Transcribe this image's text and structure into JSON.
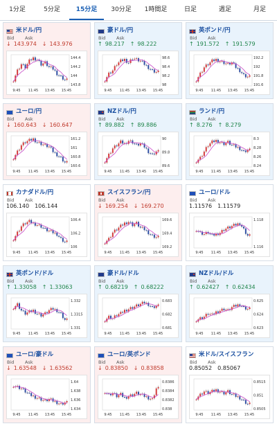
{
  "tabs": [
    {
      "label": "1分足",
      "active": false
    },
    {
      "label": "5分足",
      "active": false
    },
    {
      "label": "15分足",
      "active": true
    },
    {
      "label": "30分足",
      "active": false
    },
    {
      "label": "1時間足",
      "active": false
    },
    {
      "label": "日足",
      "active": false
    },
    {
      "label": "週足",
      "active": false
    },
    {
      "label": "月足",
      "active": false
    }
  ],
  "bid_label": "Bid",
  "ask_label": "Ask",
  "x_ticks": [
    "9:45",
    "11:45",
    "13:45",
    "15:45"
  ],
  "cards": [
    {
      "pair": "米ドル/円",
      "trend": "down",
      "bid": "143.974",
      "ask": "143.976",
      "flag": "us",
      "y_ticks": [
        "144.4",
        "144.2",
        "144",
        "143.8"
      ],
      "chart_data": {
        "type": "candlestick",
        "ylim": [
          143.75,
          144.5
        ],
        "shape": [
          0.2,
          0.5,
          0.7,
          0.6,
          0.8,
          0.9,
          0.85,
          0.7,
          0.75,
          0.6,
          0.55,
          0.4,
          0.3,
          0.2
        ]
      }
    },
    {
      "pair": "豪ドル/円",
      "trend": "up",
      "bid": "98.217",
      "ask": "98.222",
      "flag": "au",
      "y_ticks": [
        "98.6",
        "98.4",
        "98.2",
        "98"
      ],
      "chart_data": {
        "type": "candlestick",
        "ylim": [
          97.9,
          98.7
        ],
        "shape": [
          0.2,
          0.4,
          0.5,
          0.7,
          0.8,
          0.85,
          0.75,
          0.9,
          0.85,
          0.8,
          0.7,
          0.6,
          0.5,
          0.45
        ]
      }
    },
    {
      "pair": "英ポンド/円",
      "trend": "up",
      "bid": "191.572",
      "ask": "191.579",
      "flag": "gb",
      "y_ticks": [
        "192.2",
        "192",
        "191.8",
        "191.6"
      ],
      "chart_data": {
        "type": "candlestick",
        "ylim": [
          191.5,
          192.3
        ],
        "shape": [
          0.2,
          0.4,
          0.6,
          0.7,
          0.8,
          0.85,
          0.8,
          0.75,
          0.7,
          0.75,
          0.6,
          0.5,
          0.35,
          0.3
        ]
      }
    },
    {
      "pair": "ユーロ/円",
      "trend": "down",
      "bid": "160.643",
      "ask": "160.647",
      "flag": "eu",
      "y_ticks": [
        "161.2",
        "161",
        "160.8",
        "160.6"
      ],
      "chart_data": {
        "type": "candlestick",
        "ylim": [
          160.55,
          161.3
        ],
        "shape": [
          0.3,
          0.5,
          0.7,
          0.8,
          0.85,
          0.9,
          0.8,
          0.75,
          0.7,
          0.65,
          0.5,
          0.4,
          0.3,
          0.15
        ]
      }
    },
    {
      "pair": "NZドル/円",
      "trend": "up",
      "bid": "89.882",
      "ask": "89.886",
      "flag": "nz",
      "y_ticks": [
        "90",
        "89.8",
        "89.6"
      ],
      "chart_data": {
        "type": "candlestick",
        "ylim": [
          89.5,
          90.2
        ],
        "shape": [
          0.2,
          0.4,
          0.6,
          0.7,
          0.8,
          0.75,
          0.85,
          0.8,
          0.7,
          0.75,
          0.65,
          0.5,
          0.4,
          0.5
        ]
      }
    },
    {
      "pair": "ランド/円",
      "trend": "up",
      "bid": "8.276",
      "ask": "8.279",
      "flag": "za",
      "y_ticks": [
        "8.3",
        "8.28",
        "8.26",
        "8.24"
      ],
      "chart_data": {
        "type": "candlestick",
        "ylim": [
          8.23,
          8.31
        ],
        "shape": [
          0.2,
          0.3,
          0.5,
          0.7,
          0.8,
          0.85,
          0.8,
          0.75,
          0.8,
          0.7,
          0.65,
          0.6,
          0.5,
          0.55
        ]
      }
    },
    {
      "pair": "カナダドル/円",
      "trend": "neutral",
      "bid": "106.140",
      "ask": "106.144",
      "flag": "ca",
      "y_ticks": [
        "106.4",
        "106.2",
        "106"
      ],
      "chart_data": {
        "type": "candlestick",
        "ylim": [
          105.95,
          106.5
        ],
        "shape": [
          0.3,
          0.5,
          0.7,
          0.8,
          0.85,
          0.8,
          0.75,
          0.7,
          0.6,
          0.55,
          0.5,
          0.45,
          0.3,
          0.2
        ]
      }
    },
    {
      "pair": "スイスフラン/円",
      "trend": "down",
      "bid": "169.254",
      "ask": "169.270",
      "flag": "ch",
      "y_ticks": [
        "169.6",
        "169.4",
        "169.2"
      ],
      "chart_data": {
        "type": "candlestick",
        "ylim": [
          169.1,
          169.7
        ],
        "shape": [
          0.2,
          0.3,
          0.5,
          0.6,
          0.7,
          0.8,
          0.85,
          0.75,
          0.8,
          0.65,
          0.6,
          0.5,
          0.4,
          0.35
        ]
      }
    },
    {
      "pair": "ユーロ/ドル",
      "trend": "neutral",
      "bid": "1.11576",
      "ask": "1.11579",
      "flag": "eu",
      "y_ticks": [
        "1.118",
        "1.116"
      ],
      "chart_data": {
        "type": "candlestick",
        "ylim": [
          1.1145,
          1.119
        ],
        "shape": [
          0.6,
          0.5,
          0.45,
          0.5,
          0.4,
          0.45,
          0.5,
          0.6,
          0.65,
          0.7,
          0.75,
          0.8,
          0.6,
          0.4
        ]
      }
    },
    {
      "pair": "英ポンド/ドル",
      "trend": "up",
      "bid": "1.33058",
      "ask": "1.33063",
      "flag": "gb",
      "y_ticks": [
        "1.332",
        "1.3315",
        "1.331"
      ],
      "chart_data": {
        "type": "candlestick",
        "ylim": [
          1.3305,
          1.3325
        ],
        "shape": [
          0.7,
          0.8,
          0.6,
          0.5,
          0.55,
          0.6,
          0.5,
          0.45,
          0.5,
          0.6,
          0.65,
          0.6,
          0.5,
          0.3
        ]
      }
    },
    {
      "pair": "豪ドル/ドル",
      "trend": "up",
      "bid": "0.68219",
      "ask": "0.68222",
      "flag": "au",
      "y_ticks": [
        "0.683",
        "0.682",
        "0.681"
      ],
      "chart_data": {
        "type": "candlestick",
        "ylim": [
          0.6805,
          0.6835
        ],
        "shape": [
          0.3,
          0.4,
          0.35,
          0.45,
          0.5,
          0.6,
          0.65,
          0.7,
          0.75,
          0.8,
          0.85,
          0.8,
          0.7,
          0.75
        ]
      }
    },
    {
      "pair": "NZドル/ドル",
      "trend": "up",
      "bid": "0.62427",
      "ask": "0.62434",
      "flag": "nz",
      "y_ticks": [
        "0.625",
        "0.624",
        "0.623"
      ],
      "chart_data": {
        "type": "candlestick",
        "ylim": [
          0.6225,
          0.6255
        ],
        "shape": [
          0.3,
          0.35,
          0.4,
          0.5,
          0.45,
          0.55,
          0.6,
          0.65,
          0.6,
          0.7,
          0.75,
          0.8,
          0.7,
          0.65
        ]
      }
    },
    {
      "pair": "ユーロ/豪ドル",
      "trend": "down",
      "bid": "1.63548",
      "ask": "1.63562",
      "flag": "eu",
      "y_ticks": [
        "1.64",
        "1.638",
        "1.636",
        "1.634"
      ],
      "chart_data": {
        "type": "candlestick",
        "ylim": [
          1.633,
          1.641
        ],
        "shape": [
          0.8,
          0.75,
          0.7,
          0.6,
          0.5,
          0.45,
          0.4,
          0.35,
          0.3,
          0.35,
          0.3,
          0.25,
          0.2,
          0.25
        ]
      }
    },
    {
      "pair": "ユーロ/英ポンド",
      "trend": "down",
      "bid": "0.83850",
      "ask": "0.83858",
      "flag": "eu",
      "y_ticks": [
        "0.8386",
        "0.8384",
        "0.8382",
        "0.838"
      ],
      "chart_data": {
        "type": "candlestick",
        "ylim": [
          0.8379,
          0.8387
        ],
        "shape": [
          0.6,
          0.5,
          0.55,
          0.45,
          0.5,
          0.4,
          0.45,
          0.5,
          0.55,
          0.5,
          0.45,
          0.4,
          0.35,
          0.7
        ]
      }
    },
    {
      "pair": "米ドル/スイスフラン",
      "trend": "neutral",
      "bid": "0.85052",
      "ask": "0.85067",
      "flag": "us",
      "y_ticks": [
        "0.8515",
        "0.851",
        "0.8505"
      ],
      "chart_data": {
        "type": "candlestick",
        "ylim": [
          0.8502,
          0.8518
        ],
        "shape": [
          0.4,
          0.5,
          0.6,
          0.55,
          0.6,
          0.65,
          0.6,
          0.55,
          0.6,
          0.5,
          0.45,
          0.4,
          0.3,
          0.2
        ]
      }
    }
  ],
  "colors": {
    "down_bg": "#fdeeee",
    "up_bg": "#e9f3fc",
    "candle_up": "#d33b3b",
    "candle_down": "#2f4fa3",
    "ma": "#c94ac9"
  }
}
